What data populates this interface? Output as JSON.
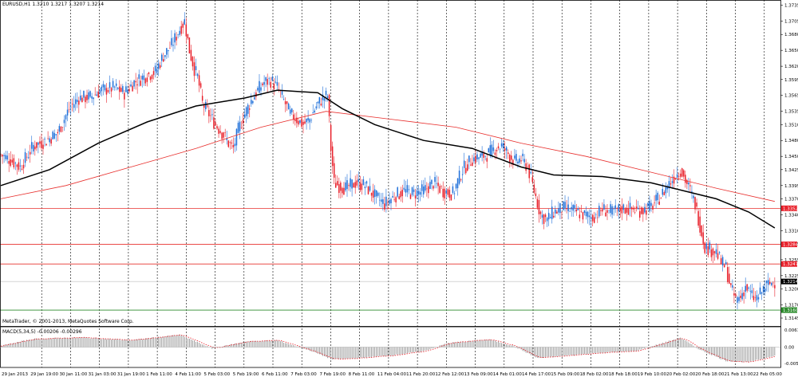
{
  "window": {
    "symbol_header": "EURUSD,H1  1.3210 1.3217 1.3207 1.3214",
    "copyright": "MetaTrader, © 2001-2013, MetaQuotes Software Corp.",
    "macd_header": "MACD(5,34,5) -0.00206 -0.00296"
  },
  "colors": {
    "background": "#ffffff",
    "bull_candle": "#1e6fd9",
    "bear_candle": "#e8202a",
    "ma_fast": "#000000",
    "ma_slow": "#e8302e",
    "support_line": "#e8302e",
    "green_line": "#2a8a2a",
    "macd_hist": "#777777",
    "macd_signal": "#e8202a",
    "grid": "#000000"
  },
  "chart_data": [
    {
      "type": "candlestick",
      "symbol": "EURUSD",
      "timeframe": "H1",
      "ylim": [
        1.313,
        1.3745
      ],
      "y_ticks": [
        "1.3735",
        "1.3705",
        "1.3680",
        "1.3650",
        "1.3620",
        "1.3595",
        "1.3565",
        "1.3535",
        "1.3510",
        "1.3480",
        "1.3450",
        "1.3425",
        "1.3395",
        "1.3370",
        "1.3340",
        "1.3310",
        "1.3285",
        "1.3255",
        "1.3225",
        "1.3200",
        "1.3170",
        "1.3145"
      ],
      "x_ticks": [
        "29 Jan 2013",
        "29 Jan 19:00",
        "30 Jan 11:00",
        "31 Jan 03:00",
        "31 Jan 19:00",
        "1 Feb 11:00",
        "4 Feb 11:00",
        "5 Feb 03:00",
        "5 Feb 19:00",
        "6 Feb 11:00",
        "7 Feb 03:00",
        "7 Feb 19:00",
        "8 Feb 11:00",
        "11 Feb 04:00",
        "11 Feb 20:00",
        "12 Feb 12:00",
        "13 Feb 09:00",
        "14 Feb 01:00",
        "14 Feb 17:00",
        "15 Feb 09:00",
        "18 Feb 02:00",
        "18 Feb 18:00",
        "19 Feb 10:00",
        "20 Feb 02:00",
        "20 Feb 18:00",
        "21 Feb 13:00",
        "22 Feb 05:00"
      ],
      "close_path": [
        [
          0,
          1.3453
        ],
        [
          5,
          1.3445
        ],
        [
          12,
          1.343
        ],
        [
          20,
          1.347
        ],
        [
          28,
          1.348
        ],
        [
          35,
          1.3495
        ],
        [
          42,
          1.354
        ],
        [
          48,
          1.356
        ],
        [
          55,
          1.3562
        ],
        [
          62,
          1.3575
        ],
        [
          70,
          1.358
        ],
        [
          76,
          1.357
        ],
        [
          82,
          1.359
        ],
        [
          88,
          1.36
        ],
        [
          95,
          1.361
        ],
        [
          100,
          1.364
        ],
        [
          105,
          1.366
        ],
        [
          110,
          1.369
        ],
        [
          113,
          1.3705
        ],
        [
          116,
          1.365
        ],
        [
          119,
          1.3615
        ],
        [
          121,
          1.36
        ],
        [
          124,
          1.355
        ],
        [
          128,
          1.353
        ],
        [
          132,
          1.351
        ],
        [
          136,
          1.3495
        ],
        [
          140,
          1.3475
        ],
        [
          143,
          1.3465
        ],
        [
          146,
          1.35
        ],
        [
          150,
          1.353
        ],
        [
          154,
          1.3555
        ],
        [
          158,
          1.3575
        ],
        [
          162,
          1.359
        ],
        [
          166,
          1.3593
        ],
        [
          170,
          1.358
        ],
        [
          174,
          1.3555
        ],
        [
          178,
          1.353
        ],
        [
          182,
          1.352
        ],
        [
          186,
          1.351
        ],
        [
          190,
          1.352
        ],
        [
          194,
          1.3545
        ],
        [
          198,
          1.356
        ],
        [
          201,
          1.3565
        ],
        [
          203,
          1.3465
        ],
        [
          205,
          1.34
        ],
        [
          208,
          1.3395
        ],
        [
          212,
          1.339
        ],
        [
          218,
          1.34
        ],
        [
          224,
          1.3395
        ],
        [
          230,
          1.3375
        ],
        [
          236,
          1.336
        ],
        [
          242,
          1.3375
        ],
        [
          248,
          1.3385
        ],
        [
          254,
          1.338
        ],
        [
          260,
          1.3385
        ],
        [
          266,
          1.34
        ],
        [
          272,
          1.3385
        ],
        [
          278,
          1.338
        ],
        [
          284,
          1.3425
        ],
        [
          290,
          1.3445
        ],
        [
          296,
          1.345
        ],
        [
          300,
          1.3455
        ],
        [
          304,
          1.3465
        ],
        [
          308,
          1.347
        ],
        [
          312,
          1.3455
        ],
        [
          316,
          1.344
        ],
        [
          320,
          1.3445
        ],
        [
          324,
          1.343
        ],
        [
          328,
          1.3385
        ],
        [
          332,
          1.334
        ],
        [
          336,
          1.333
        ],
        [
          340,
          1.3345
        ],
        [
          346,
          1.3352
        ],
        [
          352,
          1.3348
        ],
        [
          358,
          1.334
        ],
        [
          364,
          1.3335
        ],
        [
          370,
          1.335
        ],
        [
          376,
          1.3345
        ],
        [
          382,
          1.3352
        ],
        [
          388,
          1.335
        ],
        [
          394,
          1.3348
        ],
        [
          400,
          1.3355
        ],
        [
          406,
          1.3375
        ],
        [
          410,
          1.3395
        ],
        [
          414,
          1.341
        ],
        [
          418,
          1.3425
        ],
        [
          421,
          1.3405
        ],
        [
          424,
          1.3385
        ],
        [
          427,
          1.336
        ],
        [
          430,
          1.332
        ],
        [
          433,
          1.328
        ],
        [
          436,
          1.3275
        ],
        [
          440,
          1.327
        ],
        [
          443,
          1.325
        ],
        [
          446,
          1.324
        ],
        [
          449,
          1.32
        ],
        [
          452,
          1.318
        ],
        [
          455,
          1.3185
        ],
        [
          458,
          1.3205
        ],
        [
          461,
          1.319
        ],
        [
          464,
          1.318
        ],
        [
          467,
          1.319
        ],
        [
          470,
          1.3205
        ],
        [
          473,
          1.321
        ],
        [
          476,
          1.3214
        ]
      ],
      "ma_fast_path": [
        [
          0,
          1.3395
        ],
        [
          30,
          1.3425
        ],
        [
          60,
          1.3475
        ],
        [
          90,
          1.3515
        ],
        [
          120,
          1.3545
        ],
        [
          150,
          1.356
        ],
        [
          170,
          1.3575
        ],
        [
          195,
          1.357
        ],
        [
          210,
          1.354
        ],
        [
          230,
          1.351
        ],
        [
          260,
          1.348
        ],
        [
          290,
          1.3465
        ],
        [
          320,
          1.343
        ],
        [
          340,
          1.3415
        ],
        [
          370,
          1.3412
        ],
        [
          400,
          1.34
        ],
        [
          420,
          1.3385
        ],
        [
          440,
          1.337
        ],
        [
          460,
          1.3345
        ],
        [
          476,
          1.3315
        ]
      ],
      "ma_slow_path": [
        [
          0,
          1.337
        ],
        [
          40,
          1.3395
        ],
        [
          80,
          1.343
        ],
        [
          120,
          1.3465
        ],
        [
          160,
          1.3505
        ],
        [
          200,
          1.3535
        ],
        [
          240,
          1.352
        ],
        [
          280,
          1.3505
        ],
        [
          320,
          1.3475
        ],
        [
          360,
          1.345
        ],
        [
          400,
          1.342
        ],
        [
          440,
          1.339
        ],
        [
          476,
          1.3365
        ]
      ],
      "horizontal_lines": [
        {
          "label": "1.3352",
          "value": 1.3352,
          "color": "red"
        },
        {
          "label": "1.3284",
          "value": 1.3284,
          "color": "red"
        },
        {
          "label": "1.3247",
          "value": 1.3247,
          "color": "red"
        },
        {
          "label": "1.3214",
          "value": 1.3214,
          "color": "gray"
        },
        {
          "label": "1.3160",
          "value": 1.316,
          "color": "green"
        }
      ],
      "current_price": "1.3214"
    },
    {
      "type": "bar",
      "name": "MACD(5,34,5)",
      "y_ticks": [
        "0.00617",
        "0.00",
        "-0.00592"
      ],
      "ylim": [
        -0.0066,
        0.0068
      ],
      "hist_path": [
        [
          0,
          0.0005
        ],
        [
          20,
          0.003
        ],
        [
          50,
          0.0035
        ],
        [
          80,
          0.0025
        ],
        [
          110,
          0.0045
        ],
        [
          130,
          -0.0005
        ],
        [
          150,
          0.002
        ],
        [
          170,
          0.0025
        ],
        [
          190,
          -0.0012
        ],
        [
          204,
          -0.0045
        ],
        [
          220,
          -0.004
        ],
        [
          240,
          -0.003
        ],
        [
          260,
          -0.0015
        ],
        [
          275,
          0.0015
        ],
        [
          300,
          0.0028
        ],
        [
          315,
          0.0005
        ],
        [
          330,
          -0.004
        ],
        [
          350,
          -0.003
        ],
        [
          370,
          -0.002
        ],
        [
          390,
          -0.0015
        ],
        [
          410,
          0.002
        ],
        [
          418,
          0.0035
        ],
        [
          430,
          -0.001
        ],
        [
          446,
          -0.005
        ],
        [
          460,
          -0.0055
        ],
        [
          476,
          -0.003
        ]
      ]
    }
  ]
}
